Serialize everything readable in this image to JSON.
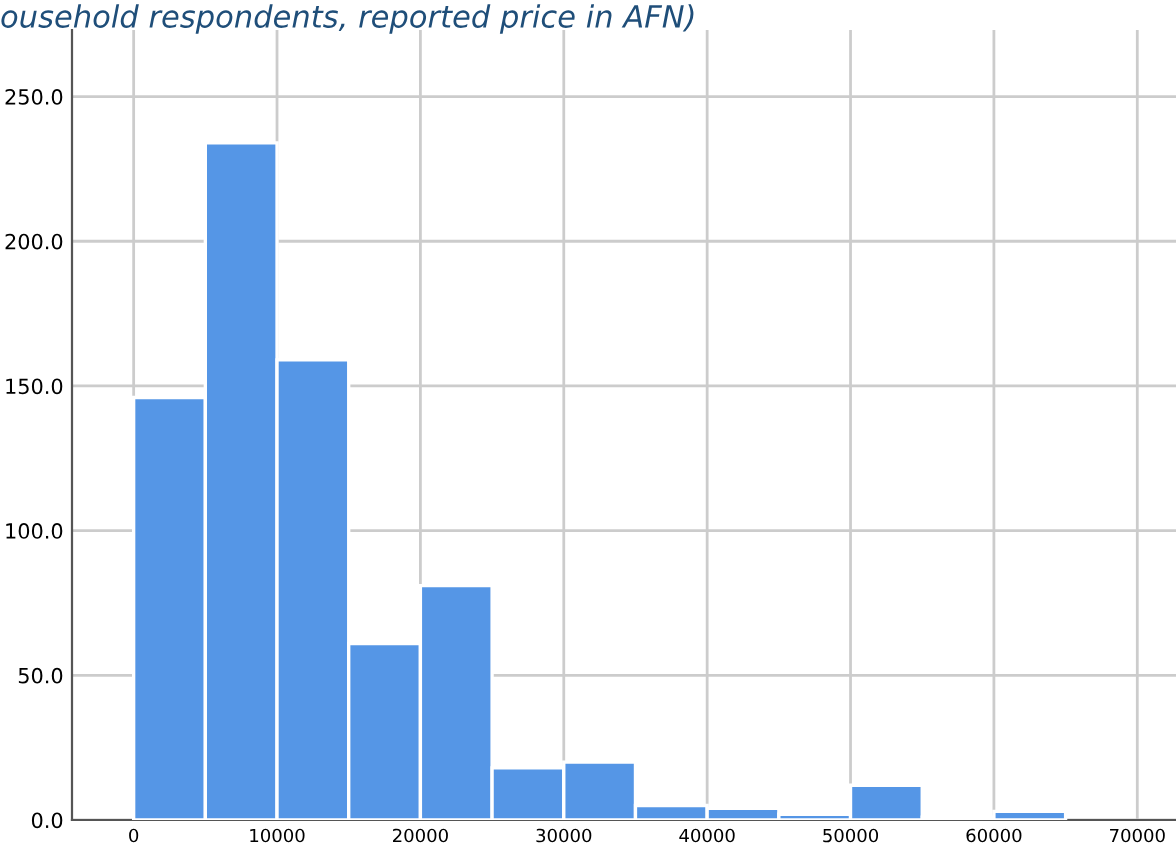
{
  "chart_data": {
    "type": "histogram",
    "title": "ousehold respondents, reported price in AFN)",
    "bins": [
      0,
      5000,
      10000,
      15000,
      20000,
      25000,
      30000,
      35000,
      40000,
      45000,
      50000,
      55000,
      60000,
      65000
    ],
    "values": [
      146,
      234,
      159,
      61,
      81,
      18,
      20,
      5,
      4,
      2,
      12,
      1,
      3
    ],
    "color": "#5596e6",
    "xlim": [
      -4300,
      72700
    ],
    "xticks": [
      0,
      10000,
      20000,
      30000,
      40000,
      50000,
      60000,
      70000
    ],
    "ylim": [
      0,
      273
    ],
    "yticks": [
      {
        "value": 0,
        "label": "0.0"
      },
      {
        "value": 50,
        "label": "50.0"
      },
      {
        "value": 100,
        "label": "100.0"
      },
      {
        "value": 150,
        "label": "150.0"
      },
      {
        "value": 200,
        "label": "200.0"
      },
      {
        "value": 250,
        "label": "250.0"
      }
    ],
    "grid": true
  }
}
